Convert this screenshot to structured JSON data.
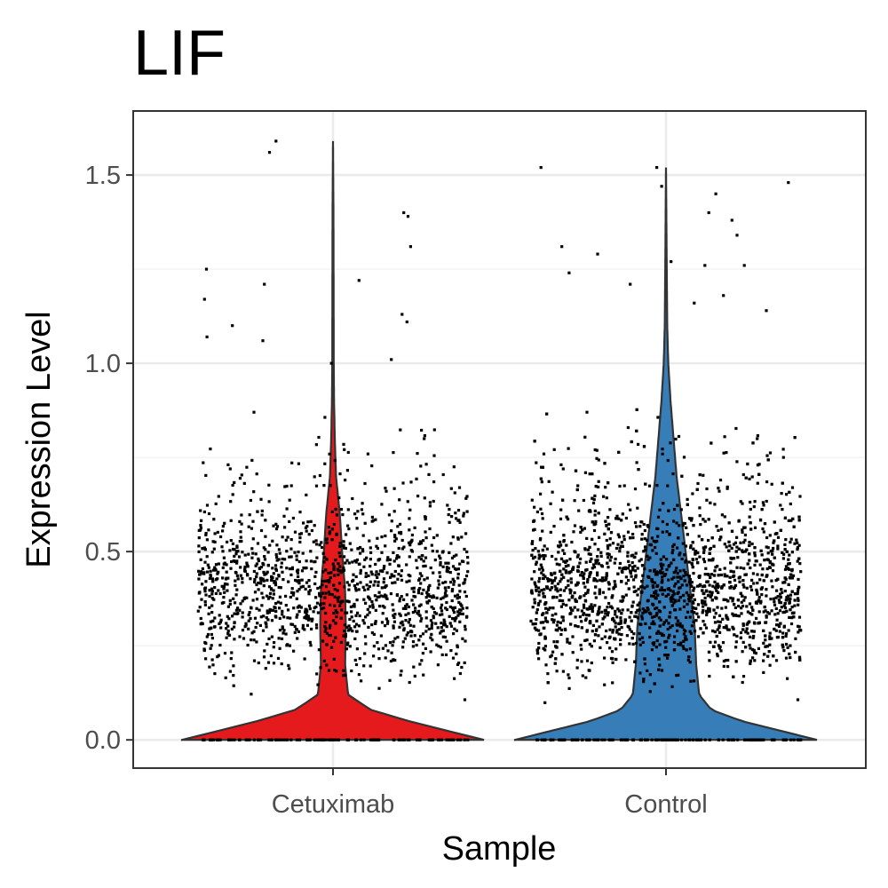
{
  "chart_data": {
    "type": "violin",
    "title": "LIF",
    "xlabel": "Sample",
    "ylabel": "Expression Level",
    "categories": [
      "Cetuximab",
      "Control"
    ],
    "y_ticks": [
      "0.0",
      "0.5",
      "1.0",
      "1.5"
    ],
    "ylim": [
      -0.075,
      1.67
    ],
    "grid": true,
    "colors": {
      "Cetuximab": "#e41a1c",
      "Control": "#377eb8",
      "points": "#000000"
    },
    "series": [
      {
        "category": "Cetuximab",
        "max": 1.59,
        "point_count": 1500,
        "outliers": [
          1.59,
          1.56,
          1.4,
          1.39,
          1.31,
          1.25,
          1.22,
          1.21,
          1.17,
          1.13,
          1.11,
          1.1,
          1.07,
          1.06,
          1.01,
          1.0
        ],
        "density_profile": [
          [
            0.0,
            1.0
          ],
          [
            0.02,
            0.8
          ],
          [
            0.05,
            0.5
          ],
          [
            0.08,
            0.25
          ],
          [
            0.12,
            0.1
          ],
          [
            0.2,
            0.08
          ],
          [
            0.3,
            0.085
          ],
          [
            0.4,
            0.08
          ],
          [
            0.5,
            0.06
          ],
          [
            0.6,
            0.045
          ],
          [
            0.7,
            0.02
          ],
          [
            0.8,
            0.012
          ],
          [
            0.9,
            0.007
          ],
          [
            1.0,
            0.005
          ],
          [
            1.2,
            0.004
          ],
          [
            1.4,
            0.003
          ],
          [
            1.59,
            0.0
          ]
        ]
      },
      {
        "category": "Control",
        "max": 1.52,
        "point_count": 2300,
        "outliers": [
          1.52,
          1.52,
          1.48,
          1.47,
          1.45,
          1.4,
          1.38,
          1.34,
          1.31,
          1.29,
          1.27,
          1.26,
          1.26,
          1.24,
          1.21,
          1.18,
          1.16,
          1.14
        ],
        "density_profile": [
          [
            0.0,
            1.0
          ],
          [
            0.02,
            0.8
          ],
          [
            0.05,
            0.5
          ],
          [
            0.08,
            0.3
          ],
          [
            0.12,
            0.22
          ],
          [
            0.2,
            0.2
          ],
          [
            0.3,
            0.19
          ],
          [
            0.4,
            0.16
          ],
          [
            0.5,
            0.13
          ],
          [
            0.6,
            0.1
          ],
          [
            0.7,
            0.07
          ],
          [
            0.8,
            0.05
          ],
          [
            0.9,
            0.03
          ],
          [
            1.0,
            0.015
          ],
          [
            1.1,
            0.008
          ],
          [
            1.3,
            0.004
          ],
          [
            1.52,
            0.0
          ]
        ]
      }
    ]
  }
}
